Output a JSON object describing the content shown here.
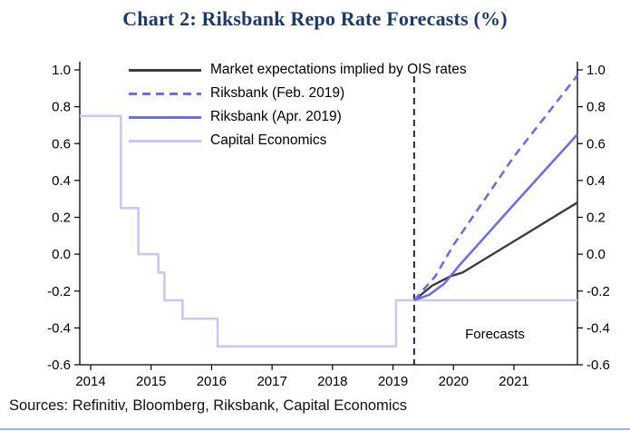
{
  "title": "Chart 2: Riksbank Repo Rate Forecasts (%)",
  "sources": "Sources: Refinitiv, Bloomberg, Riksbank, Capital Economics",
  "colors": {
    "title": "#1b3a6b",
    "riksbank": "#6d6fe0",
    "capital_economics": "#c7caf0",
    "market": "#3d3d3d",
    "axis": "#000000",
    "divider": "#9ab3e0"
  },
  "chart_data": {
    "type": "line",
    "title": "Chart 2: Riksbank Repo Rate Forecasts (%)",
    "xlabel": "",
    "ylabel": "",
    "xlim": [
      2013.82,
      2022.05
    ],
    "ylim": [
      -0.6,
      1.0
    ],
    "yticks": [
      -0.6,
      -0.4,
      -0.2,
      0.0,
      0.2,
      0.4,
      0.6,
      0.8,
      1.0
    ],
    "xticks": [
      2014,
      2015,
      2016,
      2017,
      2018,
      2019,
      2020,
      2021
    ],
    "grid": false,
    "legend_position": "top-left",
    "forecast_start": 2019.35,
    "forecast_label": "Forecasts",
    "series": [
      {
        "id": "market-ois",
        "name": "Market expectations implied by OIS rates",
        "color_key": "market",
        "style": "solid",
        "width": 2.4,
        "points": [
          [
            2019.35,
            -0.25
          ],
          [
            2019.65,
            -0.17
          ],
          [
            2019.95,
            -0.12
          ],
          [
            2020.15,
            -0.1
          ],
          [
            2021.0,
            0.07
          ],
          [
            2022.05,
            0.28
          ]
        ]
      },
      {
        "id": "riksbank-feb-2019",
        "name": "Riksbank (Feb. 2019)",
        "color_key": "riksbank",
        "style": "dashed",
        "width": 2.6,
        "points": [
          [
            2019.35,
            -0.25
          ],
          [
            2019.7,
            -0.12
          ],
          [
            2020.0,
            0.05
          ],
          [
            2021.0,
            0.53
          ],
          [
            2022.05,
            0.97
          ]
        ]
      },
      {
        "id": "riksbank-apr-2019",
        "name": "Riksbank (Apr. 2019)",
        "color_key": "riksbank",
        "style": "solid",
        "width": 2.6,
        "points": [
          [
            2019.35,
            -0.25
          ],
          [
            2019.6,
            -0.22
          ],
          [
            2019.85,
            -0.16
          ],
          [
            2020.1,
            -0.06
          ],
          [
            2021.0,
            0.27
          ],
          [
            2022.05,
            0.65
          ]
        ]
      },
      {
        "id": "capital-economics",
        "name": "Capital Economics",
        "color_key": "capital_economics",
        "style": "solid",
        "width": 2.6,
        "points": [
          [
            2013.82,
            0.75
          ],
          [
            2014.5,
            0.75
          ],
          [
            2014.5,
            0.25
          ],
          [
            2014.79,
            0.25
          ],
          [
            2014.79,
            0.0
          ],
          [
            2015.12,
            0.0
          ],
          [
            2015.12,
            -0.1
          ],
          [
            2015.22,
            -0.1
          ],
          [
            2015.22,
            -0.25
          ],
          [
            2015.52,
            -0.25
          ],
          [
            2015.52,
            -0.35
          ],
          [
            2016.1,
            -0.35
          ],
          [
            2016.1,
            -0.5
          ],
          [
            2019.05,
            -0.5
          ],
          [
            2019.05,
            -0.25
          ],
          [
            2022.05,
            -0.25
          ]
        ]
      }
    ]
  }
}
